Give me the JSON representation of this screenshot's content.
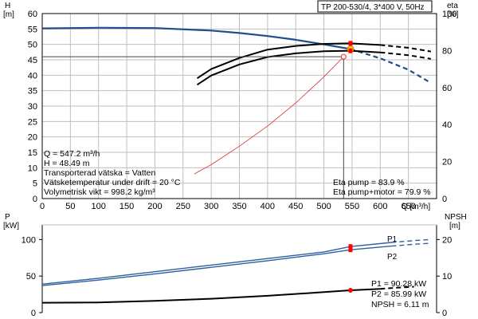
{
  "pump_title": "TP 200-530/4, 3*400 V, 50Hz",
  "colors": {
    "h_curve": "#1f4e8c",
    "p_curve": "#2f5f9e",
    "eta_curve": "#000000",
    "system_curve": "#e03030",
    "duty_point_fill": "#ffd700",
    "marker": "#ff0000"
  },
  "info_left": {
    "q": "Q = 547.2 m³/h",
    "h": "H = 48.49 m",
    "liquid": "Transporterad vätska = Vatten",
    "temperature": "Vätsketemperatur under drift = 20 °C",
    "density": "Volymetrisk vikt = 998.2 kg/m³"
  },
  "info_eta": {
    "pump": "Eta pump = 83.9 %",
    "pump_motor": "Eta pump+motor = 79.9 %"
  },
  "info_power": {
    "p1": "P1 = 90.28 kW",
    "p2": "P2 = 85.99 kW",
    "npsh": "NPSH = 6.11 m"
  },
  "chart_data": [
    {
      "type": "line",
      "title": "TP 200-530/4, 3*400 V, 50Hz",
      "xlabel": "Q [m³/h]",
      "ylabel_left": "H\n[m]",
      "ylabel_right": "eta\n[%]",
      "xlim": [
        0,
        700
      ],
      "ylim_left": [
        0,
        60
      ],
      "ylim_right": [
        0,
        100
      ],
      "grid": true,
      "x_ticks": [
        "0",
        "50",
        "100",
        "150",
        "200",
        "250",
        "300",
        "350",
        "400",
        "450",
        "500",
        "550",
        "600",
        "650"
      ],
      "y_ticks_left": [
        "0",
        "5",
        "10",
        "15",
        "20",
        "25",
        "30",
        "35",
        "40",
        "45",
        "50",
        "55",
        "60"
      ],
      "y_ticks_right": [
        "0",
        "20",
        "40",
        "60",
        "80",
        "100"
      ],
      "series": [
        {
          "axis": "left",
          "style": "solid",
          "x": [
            0,
            100,
            200,
            300,
            350,
            400,
            450,
            500,
            547.2
          ],
          "y": [
            55.2,
            55.4,
            55.3,
            54.5,
            53.7,
            52.7,
            51.5,
            50.0,
            48.49
          ]
        },
        {
          "axis": "left",
          "style": "dashed",
          "x": [
            547.2,
            600,
            650,
            690
          ],
          "y": [
            48.49,
            45.5,
            41.8,
            37.5
          ]
        },
        {
          "axis": "right",
          "style": "solid",
          "x": [
            275,
            300,
            350,
            400,
            450,
            500,
            547.2,
            600
          ],
          "y": [
            65,
            70,
            76,
            80.5,
            82.5,
            83.6,
            83.9,
            83.0
          ]
        },
        {
          "axis": "right",
          "style": "dashed",
          "x": [
            600,
            650,
            690
          ],
          "y": [
            83.0,
            81.5,
            79.5
          ]
        },
        {
          "axis": "right",
          "style": "solid",
          "x": [
            275,
            300,
            350,
            400,
            450,
            500,
            547.2,
            600
          ],
          "y": [
            61.5,
            66.5,
            72.5,
            76.5,
            78.5,
            79.6,
            79.9,
            79.0
          ]
        },
        {
          "axis": "right",
          "style": "dashed",
          "x": [
            600,
            650,
            690
          ],
          "y": [
            79.0,
            77.5,
            75.5
          ]
        },
        {
          "axis": "left",
          "style": "system",
          "x": [
            270,
            300,
            350,
            400,
            450,
            500,
            535
          ],
          "y": [
            8,
            11,
            17,
            23.5,
            31,
            39.5,
            46
          ]
        }
      ],
      "duty_point": {
        "q": 547.2,
        "h": 48.49,
        "eta_pump": 83.9,
        "eta_pump_motor": 79.9
      },
      "requested_point": {
        "q": 535,
        "h": 46
      }
    },
    {
      "type": "line",
      "ylabel_left": "P\n[kW]",
      "ylabel_right": "NPSH\n[m]",
      "xlim": [
        0,
        700
      ],
      "ylim_left": [
        0,
        120
      ],
      "ylim_right": [
        0,
        24
      ],
      "grid": false,
      "y_ticks_left": [
        "0",
        "50",
        "100"
      ],
      "y_ticks_right": [
        "0",
        "10",
        "20"
      ],
      "series": [
        {
          "name": "P1",
          "axis": "left",
          "style": "solid",
          "x": [
            0,
            100,
            200,
            300,
            400,
            500,
            547.2,
            620
          ],
          "y": [
            39,
            47,
            56,
            65,
            74,
            83,
            90.28,
            96
          ]
        },
        {
          "name": "P1",
          "axis": "left",
          "style": "dashed",
          "x": [
            620,
            660,
            690
          ],
          "y": [
            96,
            98.5,
            100
          ]
        },
        {
          "name": "P2",
          "axis": "left",
          "style": "solid",
          "x": [
            0,
            100,
            200,
            300,
            400,
            500,
            547.2,
            620
          ],
          "y": [
            37,
            44.5,
            53,
            62,
            71,
            80.5,
            85.99,
            91
          ]
        },
        {
          "name": "P2",
          "axis": "left",
          "style": "dashed",
          "x": [
            620,
            660,
            690
          ],
          "y": [
            91,
            93.5,
            95
          ]
        },
        {
          "axis": "right",
          "style": "solid",
          "x": [
            0,
            100,
            200,
            300,
            400,
            500,
            547.2,
            600
          ],
          "y": [
            2.7,
            2.8,
            3.2,
            3.8,
            4.6,
            5.6,
            6.11,
            6.5
          ]
        },
        {
          "axis": "right",
          "style": "dashed",
          "x": [
            600,
            630,
            660
          ],
          "y": [
            6.5,
            6.8,
            7.1
          ]
        }
      ],
      "duty_point": {
        "q": 547.2,
        "p1": 90.28,
        "p2": 85.99,
        "npsh": 6.11
      }
    }
  ]
}
